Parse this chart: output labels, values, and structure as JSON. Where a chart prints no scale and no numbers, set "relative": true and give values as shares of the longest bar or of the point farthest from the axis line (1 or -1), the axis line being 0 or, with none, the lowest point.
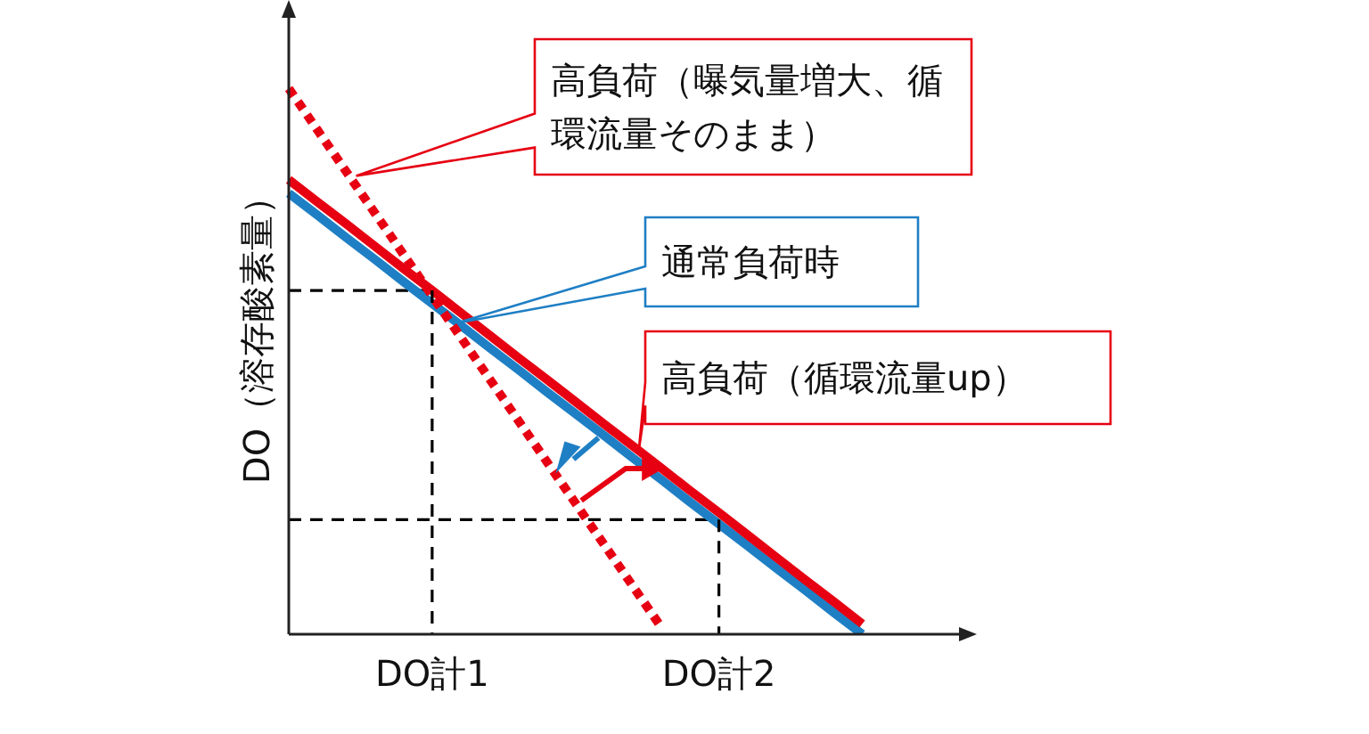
{
  "chart_data": {
    "type": "line",
    "relative": true,
    "ylabel": "DO（溶存酸素量）",
    "legend": false,
    "marker": "none",
    "categories": [
      null,
      null,
      null,
      null,
      null,
      "DO計1",
      null,
      null,
      null,
      null,
      null,
      null,
      null,
      null,
      null,
      "DO計2",
      null,
      null,
      null,
      null,
      null,
      null,
      null,
      null
    ],
    "series": [
      {
        "color": "#e60012",
        "line_style": "dotted",
        "values": [
          1,
          0.924,
          0.848,
          0.772,
          0.696,
          0.62,
          0.544,
          0.468,
          0.392,
          0.316,
          0.24,
          0.164,
          0.088,
          0.012,
          null,
          null,
          null,
          null,
          null,
          null,
          null,
          null,
          null,
          null
        ]
      },
      {
        "color": "#e60012",
        "line_style": "solid",
        "values": [
          0.833,
          0.792,
          0.752,
          0.711,
          0.67,
          0.63,
          0.589,
          0.548,
          0.507,
          0.467,
          0.426,
          0.385,
          0.345,
          0.304,
          0.263,
          0.223,
          0.182,
          0.141,
          0.1,
          0.06,
          0.019,
          null,
          null,
          null
        ]
      },
      {
        "color": "#1f7fc4",
        "line_style": "solid",
        "values": [
          0.808,
          0.768,
          0.727,
          0.687,
          0.646,
          0.606,
          0.566,
          0.525,
          0.485,
          0.444,
          0.404,
          0.364,
          0.323,
          0.283,
          0.242,
          0.202,
          0.162,
          0.121,
          0.081,
          0.04,
          0,
          null,
          null,
          null
        ]
      },
      {
        "color": "#000000",
        "line_style": "dashed",
        "values": [
          0.63,
          0.63,
          0.63,
          0.63,
          0.63,
          0.63,
          null,
          null,
          null,
          null,
          null,
          null,
          null,
          null,
          null,
          null,
          null,
          null,
          null,
          null,
          null,
          null,
          null,
          null
        ]
      },
      {
        "color": "#000000",
        "line_style": "dashed",
        "values": [
          0.21,
          0.21,
          0.21,
          0.21,
          0.21,
          0.21,
          0.21,
          0.21,
          0.21,
          0.21,
          0.21,
          0.21,
          0.21,
          0.21,
          0.21,
          0.21,
          null,
          null,
          null,
          null,
          null,
          null,
          null,
          null
        ]
      }
    ],
    "ref_lines": [
      {
        "axis": "x",
        "value": "DO計1",
        "color": "#000000",
        "line_style": "dashed"
      },
      {
        "axis": "x",
        "value": "DO計2",
        "color": "#000000",
        "line_style": "dashed"
      }
    ],
    "annotations": [
      "高負荷（曝気量増大、循環流量そのまま）",
      "通常負荷時",
      "高負荷（循環流量up）"
    ]
  }
}
